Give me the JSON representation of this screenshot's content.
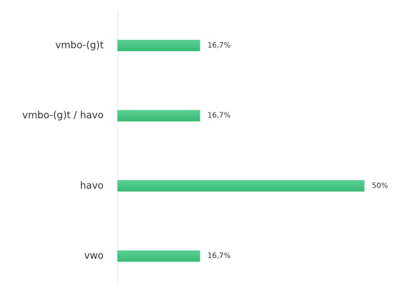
{
  "chart_data": {
    "type": "bar",
    "orientation": "horizontal",
    "categories": [
      "vmbo-(g)t",
      "vmbo-(g)t / havo",
      "havo",
      "vwo"
    ],
    "values": [
      16.7,
      16.7,
      50,
      16.7
    ],
    "value_labels": [
      "16,7%",
      "16,7%",
      "50%",
      "16,7%"
    ],
    "color": "#41c482"
  }
}
